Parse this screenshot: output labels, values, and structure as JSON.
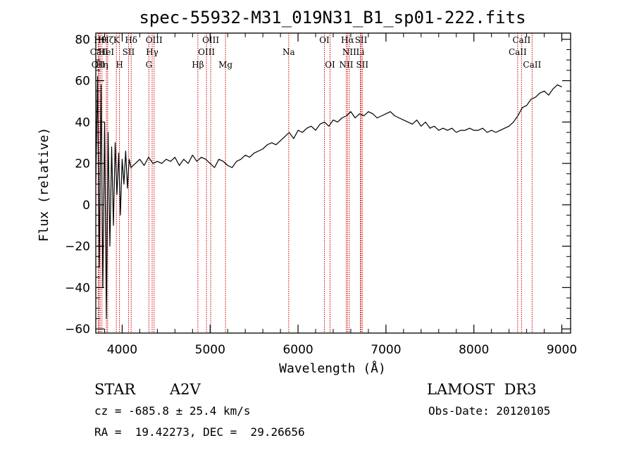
{
  "chart_data": {
    "type": "line",
    "title": "spec-55932-M31_019N31_B1_sp01-222.fits",
    "xlabel": "Wavelength (Å)",
    "ylabel": "Flux (relative)",
    "xlim": [
      3700,
      9100
    ],
    "ylim": [
      -62,
      83
    ],
    "xticks": [
      4000,
      5000,
      6000,
      7000,
      8000,
      9000
    ],
    "yticks": [
      -60,
      -40,
      -20,
      0,
      20,
      40,
      60,
      80
    ],
    "series": [
      {
        "name": "flux",
        "x": [
          3700,
          3720,
          3740,
          3760,
          3780,
          3800,
          3820,
          3840,
          3860,
          3880,
          3900,
          3920,
          3940,
          3960,
          3980,
          4000,
          4020,
          4040,
          4060,
          4080,
          4100,
          4150,
          4200,
          4250,
          4300,
          4350,
          4400,
          4450,
          4500,
          4550,
          4600,
          4650,
          4700,
          4750,
          4800,
          4850,
          4900,
          4950,
          5000,
          5050,
          5100,
          5150,
          5200,
          5250,
          5300,
          5350,
          5400,
          5450,
          5500,
          5550,
          5600,
          5650,
          5700,
          5750,
          5800,
          5850,
          5900,
          5950,
          6000,
          6050,
          6100,
          6150,
          6200,
          6250,
          6300,
          6350,
          6400,
          6450,
          6500,
          6550,
          6600,
          6650,
          6700,
          6750,
          6800,
          6850,
          6900,
          6950,
          7000,
          7050,
          7100,
          7150,
          7200,
          7250,
          7300,
          7350,
          7400,
          7450,
          7500,
          7550,
          7600,
          7650,
          7700,
          7750,
          7800,
          7850,
          7900,
          7950,
          8000,
          8050,
          8100,
          8150,
          8200,
          8250,
          8300,
          8350,
          8400,
          8450,
          8500,
          8550,
          8600,
          8650,
          8700,
          8750,
          8800,
          8850,
          8900,
          8950,
          9000
        ],
        "values": [
          10,
          62,
          -30,
          58,
          -40,
          40,
          -55,
          35,
          -20,
          28,
          -10,
          30,
          5,
          25,
          -5,
          22,
          10,
          26,
          8,
          22,
          18,
          20,
          22,
          19,
          23,
          20,
          21,
          20,
          22,
          21,
          23,
          19,
          22,
          20,
          24,
          21,
          23,
          22,
          20,
          18,
          22,
          21,
          19,
          18,
          21,
          22,
          24,
          23,
          25,
          26,
          27,
          29,
          30,
          29,
          31,
          33,
          35,
          32,
          36,
          35,
          37,
          38,
          36,
          39,
          40,
          38,
          41,
          40,
          42,
          43,
          45,
          42,
          44,
          43,
          45,
          44,
          42,
          43,
          44,
          45,
          43,
          42,
          41,
          40,
          39,
          41,
          38,
          40,
          37,
          38,
          36,
          37,
          36,
          37,
          35,
          36,
          36,
          37,
          36,
          36,
          37,
          35,
          36,
          35,
          36,
          37,
          38,
          40,
          43,
          47,
          48,
          51,
          52,
          54,
          55,
          53,
          56,
          58,
          57
        ]
      }
    ],
    "line_marks": [
      {
        "label": "OII",
        "x": 3727,
        "row": 2
      },
      {
        "label": "CaII",
        "x": 3737,
        "row": 1
      },
      {
        "label": "Hθ",
        "x": 3750,
        "row": 0
      },
      {
        "label": "Hη",
        "x": 3770,
        "row": 2
      },
      {
        "label": "HeI",
        "x": 3820,
        "row": 1
      },
      {
        "label": "Hζ",
        "x": 3835,
        "row": 0
      },
      {
        "label": "K",
        "x": 3934,
        "row": 0
      },
      {
        "label": "H",
        "x": 3969,
        "row": 2
      },
      {
        "label": "SII",
        "x": 4072,
        "row": 1
      },
      {
        "label": "Hδ",
        "x": 4102,
        "row": 0
      },
      {
        "label": "G",
        "x": 4304,
        "row": 2
      },
      {
        "label": "Hγ",
        "x": 4341,
        "row": 1
      },
      {
        "label": "OIII",
        "x": 4363,
        "row": 0
      },
      {
        "label": "Hβ",
        "x": 4861,
        "row": 2
      },
      {
        "label": "OIII",
        "x": 4959,
        "row": 1
      },
      {
        "label": "OIII",
        "x": 5007,
        "row": 0
      },
      {
        "label": "Mg",
        "x": 5175,
        "row": 2
      },
      {
        "label": "Na",
        "x": 5894,
        "row": 1
      },
      {
        "label": "OI",
        "x": 6300,
        "row": 0
      },
      {
        "label": "OI",
        "x": 6364,
        "row": 2
      },
      {
        "label": "NII",
        "x": 6548,
        "row": 2
      },
      {
        "label": "Hα",
        "x": 6563,
        "row": 0
      },
      {
        "label": "NII",
        "x": 6583,
        "row": 1
      },
      {
        "label": "Li",
        "x": 6708,
        "row": 1
      },
      {
        "label": "SII",
        "x": 6717,
        "row": 0
      },
      {
        "label": "SII",
        "x": 6731,
        "row": 2
      },
      {
        "label": "CaII",
        "x": 8498,
        "row": 1
      },
      {
        "label": "CaII",
        "x": 8542,
        "row": 0
      },
      {
        "label": "CaII",
        "x": 8662,
        "row": 2
      }
    ]
  },
  "footer": {
    "object_class": "STAR",
    "subclass": "A2V",
    "survey": "LAMOST  DR3",
    "cz": "cz = -685.8 ± 25.4 km/s",
    "obs_date": "Obs-Date: 20120105",
    "coords": "RA =  19.42273, DEC =  29.26656"
  },
  "colors": {
    "spectrum": "#000000",
    "line_marker": "#cc0000"
  }
}
